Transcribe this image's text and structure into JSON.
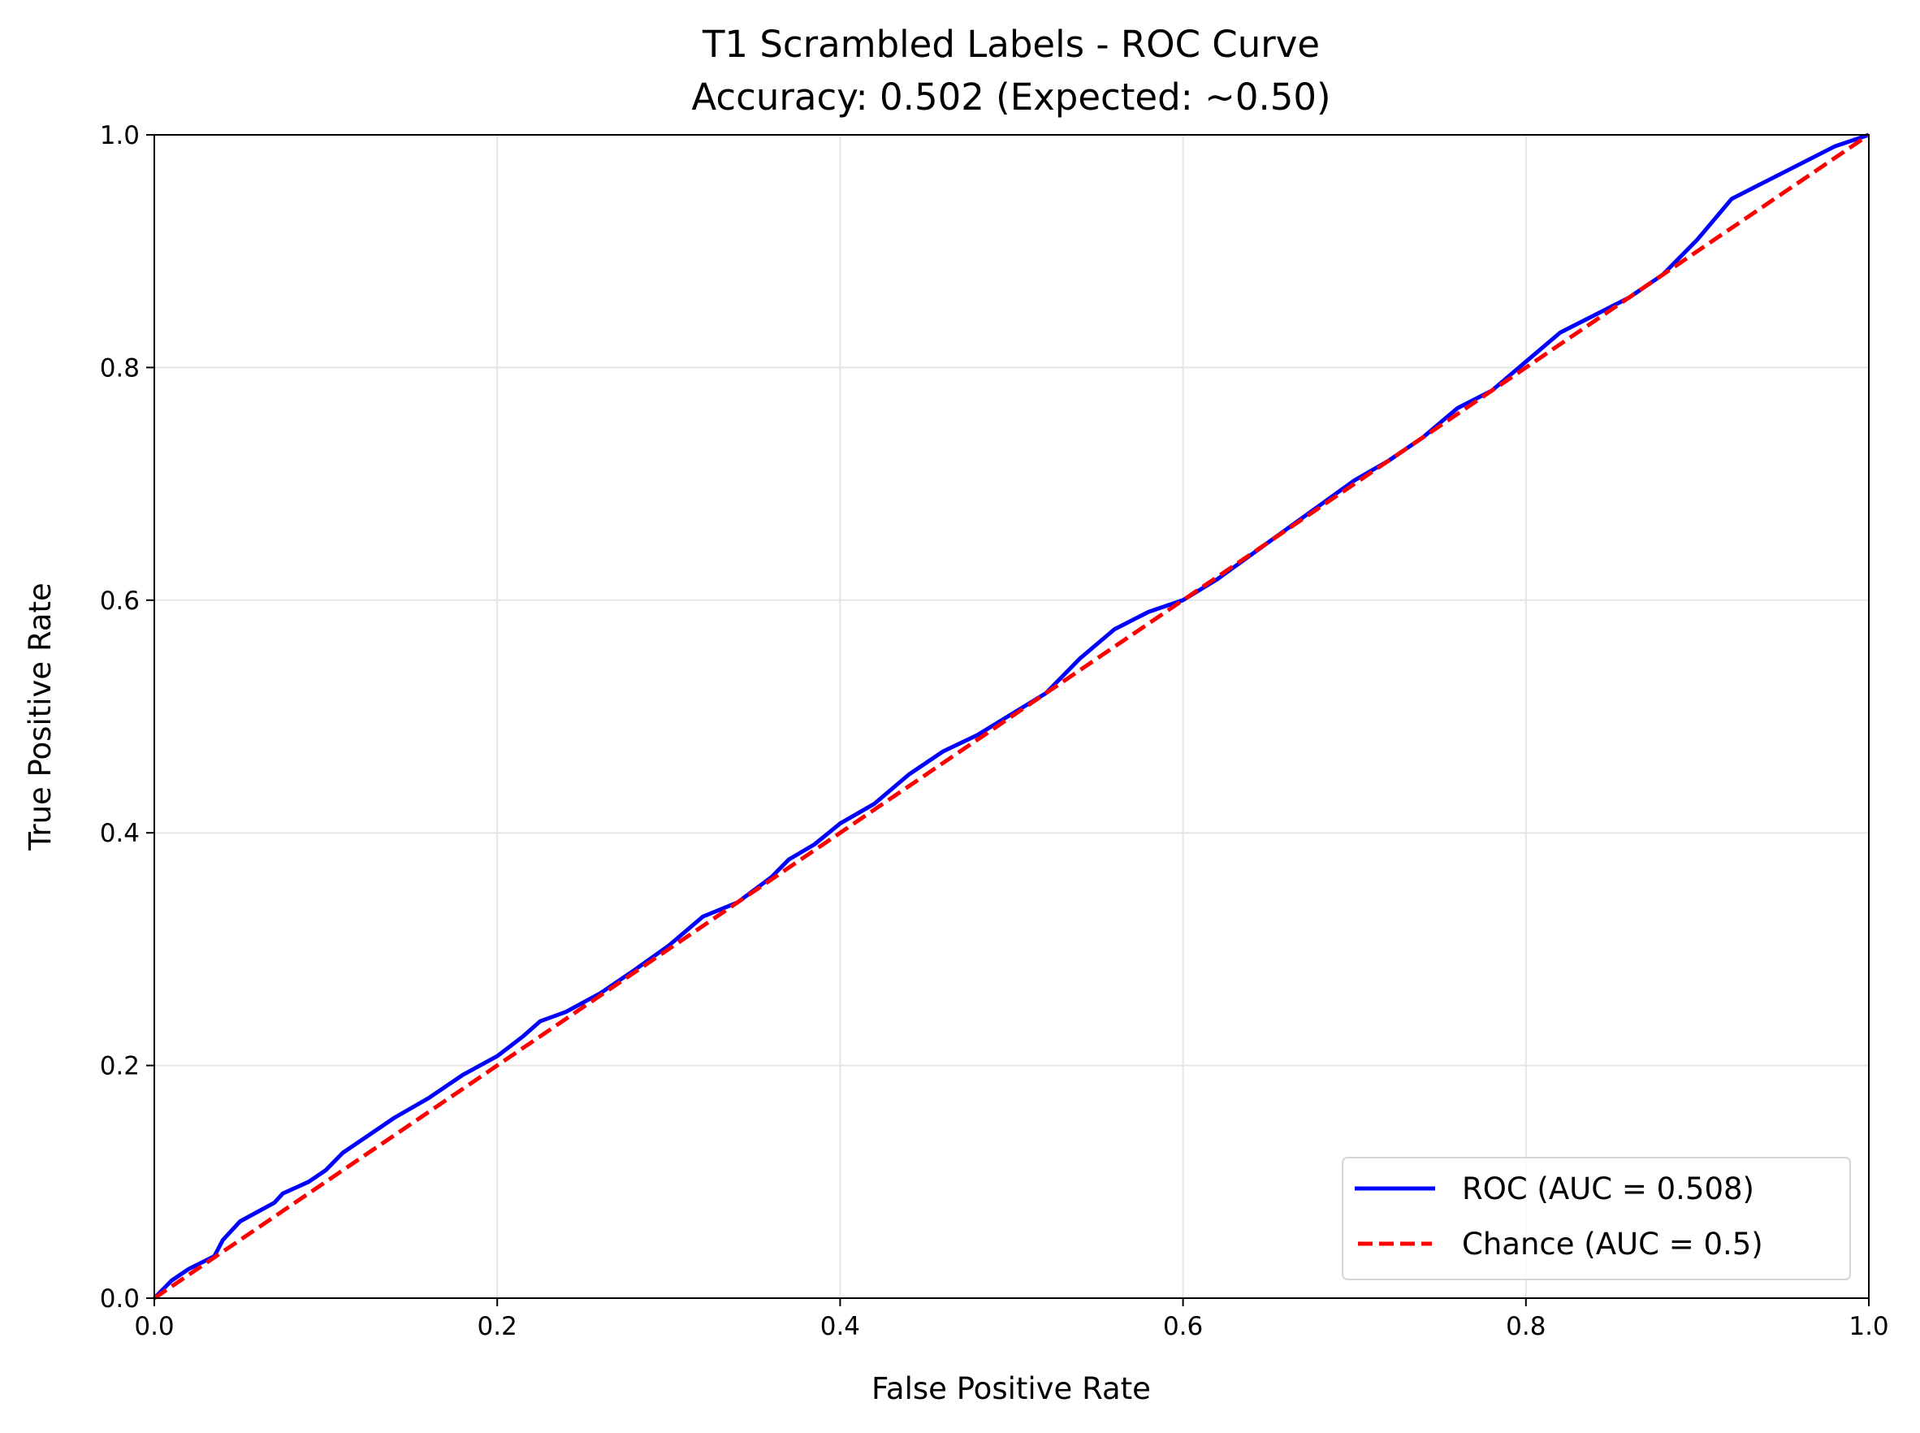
{
  "chart_data": {
    "type": "line",
    "title": "T1 Scrambled Labels - ROC Curve",
    "subtitle": "Accuracy: 0.502 (Expected: ~0.50)",
    "xlabel": "False Positive Rate",
    "ylabel": "True Positive Rate",
    "xlim": [
      0,
      1
    ],
    "ylim": [
      0,
      1
    ],
    "xticks": [
      "0.0",
      "0.2",
      "0.4",
      "0.6",
      "0.8",
      "1.0"
    ],
    "yticks": [
      "0.0",
      "0.2",
      "0.4",
      "0.6",
      "0.8",
      "1.0"
    ],
    "grid": true,
    "legend_position": "bottom-right",
    "series": [
      {
        "name": "ROC (AUC = 0.508)",
        "color": "#0000ff",
        "style": "solid",
        "x": [
          0,
          0.01,
          0.02,
          0.035,
          0.04,
          0.05,
          0.06,
          0.07,
          0.075,
          0.09,
          0.1,
          0.11,
          0.12,
          0.14,
          0.16,
          0.18,
          0.2,
          0.215,
          0.225,
          0.24,
          0.26,
          0.28,
          0.3,
          0.32,
          0.34,
          0.36,
          0.37,
          0.385,
          0.4,
          0.42,
          0.44,
          0.46,
          0.48,
          0.5,
          0.52,
          0.54,
          0.56,
          0.58,
          0.6,
          0.62,
          0.65,
          0.7,
          0.72,
          0.74,
          0.76,
          0.78,
          0.8,
          0.82,
          0.84,
          0.86,
          0.88,
          0.9,
          0.92,
          0.94,
          0.96,
          0.98,
          1
        ],
        "y": [
          0,
          0.015,
          0.025,
          0.036,
          0.05,
          0.066,
          0.074,
          0.082,
          0.09,
          0.1,
          0.11,
          0.125,
          0.135,
          0.155,
          0.172,
          0.192,
          0.208,
          0.225,
          0.238,
          0.246,
          0.262,
          0.282,
          0.303,
          0.328,
          0.34,
          0.362,
          0.377,
          0.39,
          0.408,
          0.425,
          0.45,
          0.47,
          0.484,
          0.502,
          0.52,
          0.55,
          0.575,
          0.59,
          0.6,
          0.618,
          0.65,
          0.703,
          0.72,
          0.74,
          0.765,
          0.78,
          0.805,
          0.83,
          0.845,
          0.86,
          0.88,
          0.91,
          0.945,
          0.96,
          0.975,
          0.99,
          1
        ]
      },
      {
        "name": "Chance (AUC = 0.5)",
        "color": "#ff0000",
        "style": "dashed",
        "x": [
          0,
          1
        ],
        "y": [
          0,
          1
        ]
      }
    ]
  }
}
